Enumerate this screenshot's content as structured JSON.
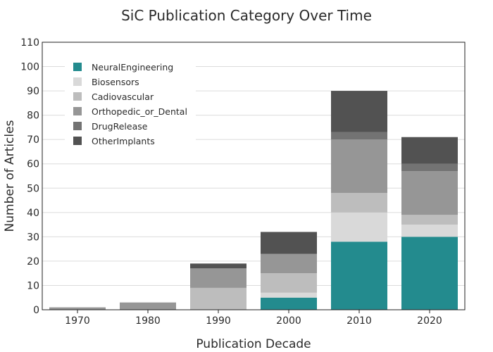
{
  "chart_data": {
    "type": "bar",
    "stacked": true,
    "title": "SiC Publication Category Over Time",
    "xlabel": "Publication Decade",
    "ylabel": "Number of Articles",
    "categories": [
      "1970",
      "1980",
      "1990",
      "2000",
      "2010",
      "2020"
    ],
    "ylim": [
      0,
      110
    ],
    "yticks": [
      0,
      10,
      20,
      30,
      40,
      50,
      60,
      70,
      80,
      90,
      100,
      110
    ],
    "grid": true,
    "legend_position": "top-left",
    "series": [
      {
        "name": "NeuralEngineering",
        "color": "#238b8e",
        "values": [
          0,
          0,
          0,
          5,
          28,
          30
        ]
      },
      {
        "name": "Biosensors",
        "color": "#d9d9d9",
        "values": [
          0,
          0,
          0,
          2,
          12,
          5
        ]
      },
      {
        "name": "Cadiovascular",
        "color": "#bdbdbd",
        "values": [
          0,
          0,
          9,
          8,
          8,
          4
        ]
      },
      {
        "name": "Orthopedic_or_Dental",
        "color": "#969696",
        "values": [
          1,
          3,
          8,
          8,
          22,
          18
        ]
      },
      {
        "name": "DrugRelease",
        "color": "#737373",
        "values": [
          0,
          0,
          0,
          0,
          3,
          3
        ]
      },
      {
        "name": "OtherImplants",
        "color": "#525252",
        "values": [
          0,
          0,
          2,
          9,
          17,
          11
        ]
      }
    ]
  }
}
